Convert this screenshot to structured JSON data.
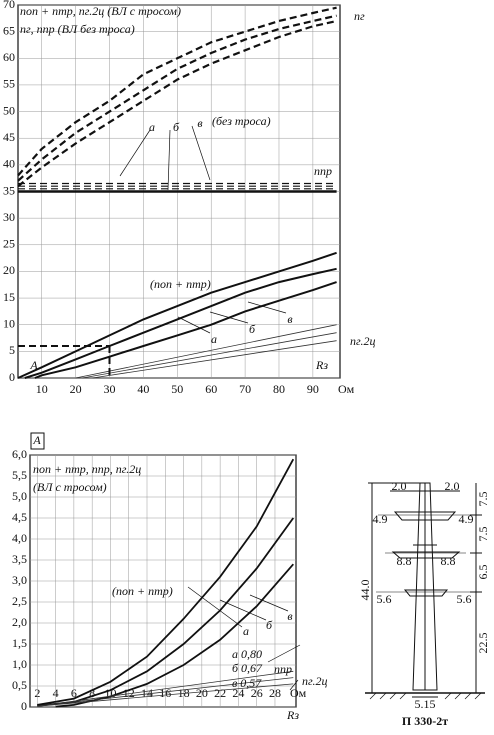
{
  "chart_data": [
    {
      "type": "line",
      "xlim": [
        3,
        98
      ],
      "ylim": [
        0,
        70
      ],
      "xticks": [
        10,
        20,
        30,
        40,
        50,
        60,
        70,
        80,
        90
      ],
      "yticks": [
        0,
        5,
        10,
        15,
        20,
        25,
        30,
        35,
        40,
        45,
        50,
        55,
        60,
        65,
        70
      ],
      "grid": true,
      "xlabel": "Rз",
      "xunit": "Ом",
      "annotations": [
        "nоп + nтр, nг.2ц (ВЛ с тросом)",
        "nг, nпр (ВЛ без троса)",
        "nг",
        "(без троса)",
        "а",
        "б",
        "в",
        "nпр",
        "(nоп + nтр)",
        "а",
        "б",
        "в",
        "nг.2ц",
        "A"
      ],
      "series": [
        {
          "color": "#111",
          "dash": true,
          "width": 2.2,
          "x": [
            3,
            10,
            20,
            30,
            40,
            50,
            60,
            70,
            80,
            90,
            97
          ],
          "values": [
            38,
            43,
            48,
            52,
            57,
            60,
            63,
            65,
            67,
            68.5,
            69.5
          ]
        },
        {
          "color": "#111",
          "dash": true,
          "width": 2.2,
          "x": [
            3,
            10,
            20,
            30,
            40,
            50,
            60,
            70,
            80,
            90,
            97
          ],
          "values": [
            37,
            41,
            46,
            50,
            54,
            58,
            61,
            63.5,
            65.5,
            67,
            68
          ]
        },
        {
          "color": "#111",
          "dash": true,
          "width": 2.2,
          "x": [
            3,
            10,
            20,
            30,
            40,
            50,
            60,
            70,
            80,
            90,
            97
          ],
          "values": [
            36,
            39.5,
            44,
            48,
            52,
            56,
            59,
            61.5,
            64,
            66,
            67
          ]
        },
        {
          "color": "#111",
          "dash": true,
          "width": 1.2,
          "x": [
            3,
            97
          ],
          "values": [
            36.5,
            36.5
          ]
        },
        {
          "color": "#111",
          "dash": true,
          "width": 1.2,
          "x": [
            3,
            97
          ],
          "values": [
            36,
            36
          ]
        },
        {
          "color": "#111",
          "dash": true,
          "width": 1.2,
          "x": [
            3,
            97
          ],
          "values": [
            35.5,
            35.5
          ]
        },
        {
          "color": "#111",
          "dash": false,
          "width": 2.4,
          "x": [
            3,
            97
          ],
          "values": [
            35,
            35
          ]
        },
        {
          "color": "#111",
          "dash": false,
          "width": 2,
          "x": [
            3,
            10,
            20,
            30,
            40,
            50,
            60,
            70,
            80,
            90,
            97
          ],
          "values": [
            0,
            2,
            5,
            8,
            11,
            13.5,
            16,
            18,
            20,
            22,
            23.5
          ]
        },
        {
          "color": "#111",
          "dash": false,
          "width": 2,
          "x": [
            5,
            10,
            20,
            30,
            40,
            50,
            60,
            70,
            80,
            90,
            97
          ],
          "values": [
            0,
            1,
            3.5,
            6,
            8.5,
            11,
            13.5,
            16,
            18,
            19.5,
            20.5
          ]
        },
        {
          "color": "#111",
          "dash": false,
          "width": 2,
          "x": [
            8,
            10,
            20,
            30,
            40,
            50,
            60,
            70,
            80,
            90,
            97
          ],
          "values": [
            0,
            0.5,
            2,
            4,
            6,
            8,
            10,
            12.5,
            14.5,
            16.5,
            18
          ]
        },
        {
          "color": "#333",
          "dash": false,
          "width": 0.8,
          "x": [
            20,
            97
          ],
          "values": [
            0,
            10
          ]
        },
        {
          "color": "#333",
          "dash": false,
          "width": 0.8,
          "x": [
            22,
            97
          ],
          "values": [
            0,
            8.5
          ]
        },
        {
          "color": "#333",
          "dash": false,
          "width": 0.8,
          "x": [
            25,
            97
          ],
          "values": [
            0,
            7
          ]
        },
        {
          "color": "#111",
          "dash": true,
          "width": 2,
          "x": [
            3,
            30
          ],
          "values": [
            6,
            6
          ]
        },
        {
          "color": "#111",
          "dash": true,
          "width": 2,
          "x": [
            30,
            30
          ],
          "values": [
            6,
            0
          ]
        }
      ]
    },
    {
      "type": "line",
      "xlim": [
        1.2,
        30.3
      ],
      "ylim": [
        0,
        6
      ],
      "xticks": [
        2,
        4,
        6,
        8,
        10,
        12,
        14,
        16,
        18,
        20,
        22,
        24,
        26,
        28
      ],
      "yticks": [
        0,
        {
          "value": 0.5,
          "label": "0,5"
        },
        {
          "value": 1,
          "label": "1,0"
        },
        {
          "value": 1.5,
          "label": "1,5"
        },
        {
          "value": 2,
          "label": "2,0"
        },
        {
          "value": 2.5,
          "label": "2,5"
        },
        {
          "value": 3,
          "label": "3,0"
        },
        {
          "value": 3.5,
          "label": "3,5"
        },
        {
          "value": 4,
          "label": "4,0"
        },
        {
          "value": 4.5,
          "label": "4,5"
        },
        {
          "value": 5,
          "label": "5,0"
        },
        {
          "value": 5.5,
          "label": "5,5"
        },
        {
          "value": 6,
          "label": "6,0"
        }
      ],
      "grid": true,
      "xlabel": "Rз",
      "xunit": "Ом",
      "annotations": [
        "A",
        "nоп + nтр, nпр, nг.2ц",
        "(ВЛ с тросом)",
        "(nоп + nтр)",
        "а",
        "б",
        "в",
        "а 0,80",
        "б 0,67",
        "в 0,57",
        "nпр",
        "nг.2ц"
      ],
      "series": [
        {
          "color": "#111",
          "dash": false,
          "width": 1.8,
          "x": [
            2,
            6,
            10,
            14,
            18,
            22,
            26,
            30
          ],
          "values": [
            0.05,
            0.2,
            0.6,
            1.2,
            2.1,
            3.1,
            4.3,
            5.9
          ]
        },
        {
          "color": "#111",
          "dash": false,
          "width": 1.8,
          "x": [
            2,
            6,
            10,
            14,
            18,
            22,
            26,
            30
          ],
          "values": [
            0.03,
            0.12,
            0.4,
            0.85,
            1.5,
            2.3,
            3.3,
            4.5
          ]
        },
        {
          "color": "#111",
          "dash": false,
          "width": 1.8,
          "x": [
            4,
            6,
            10,
            14,
            18,
            22,
            26,
            30
          ],
          "values": [
            0.01,
            0.05,
            0.25,
            0.55,
            1,
            1.6,
            2.4,
            3.4
          ]
        },
        {
          "color": "#333",
          "dash": false,
          "width": 0.8,
          "x": [
            2,
            30
          ],
          "values": [
            0.02,
            0.85
          ]
        },
        {
          "color": "#333",
          "dash": false,
          "width": 0.8,
          "x": [
            2,
            30
          ],
          "values": [
            0.02,
            0.7
          ]
        },
        {
          "color": "#333",
          "dash": false,
          "width": 0.8,
          "x": [
            2,
            30
          ],
          "values": [
            0.02,
            0.55
          ]
        }
      ]
    }
  ],
  "tower": {
    "labels": [
      "2.0",
      "2.0",
      "4.9",
      "4.9",
      "8.8",
      "8.8",
      "5.6",
      "5.6",
      "44.0",
      "7.5",
      "7.5",
      "6.5",
      "22.5",
      "5.15"
    ],
    "caption": "П 330-2т"
  }
}
